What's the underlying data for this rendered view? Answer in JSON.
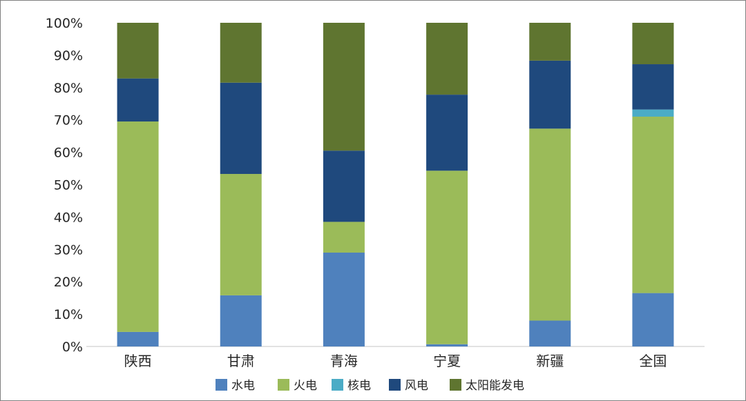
{
  "chart_data": {
    "type": "bar",
    "stacked": true,
    "percent": true,
    "categories": [
      "陕西",
      "甘肃",
      "青海",
      "宁夏",
      "新疆",
      "全国"
    ],
    "series": [
      {
        "name": "水电",
        "color": "#4f81bd",
        "values": [
          4.5,
          15.8,
          29.0,
          0.7,
          8.0,
          16.5
        ]
      },
      {
        "name": "火电",
        "color": "#9bbb59",
        "values": [
          65.0,
          37.5,
          9.5,
          53.6,
          59.3,
          54.5
        ]
      },
      {
        "name": "核电",
        "color": "#4bacc6",
        "values": [
          0,
          0,
          0,
          0,
          0,
          2.2
        ]
      },
      {
        "name": "风电",
        "color": "#1f497d",
        "values": [
          13.3,
          28.2,
          22.0,
          23.5,
          21.0,
          14.0
        ]
      },
      {
        "name": "太阳能发电",
        "color": "#5f7530",
        "values": [
          17.2,
          18.5,
          39.5,
          22.2,
          11.7,
          12.8
        ]
      }
    ],
    "ylim": [
      0,
      100
    ],
    "yticks": [
      "0%",
      "10%",
      "20%",
      "30%",
      "40%",
      "50%",
      "60%",
      "70%",
      "80%",
      "90%",
      "100%"
    ],
    "title": "",
    "xlabel": "",
    "ylabel": "",
    "grid": false,
    "legend_position": "bottom"
  }
}
